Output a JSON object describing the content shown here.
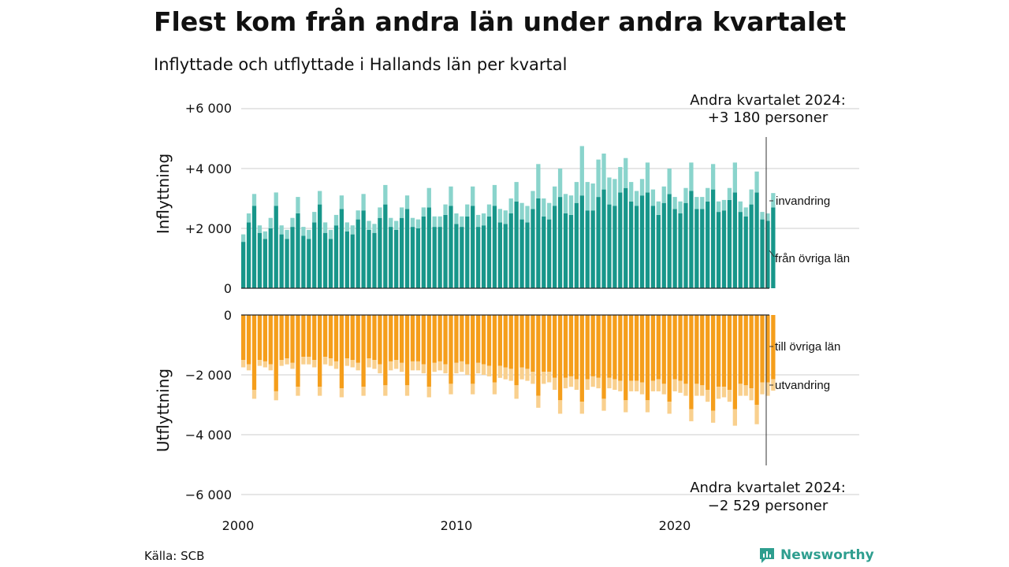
{
  "title": "Flest kom från andra län under andra kvartalet",
  "subtitle": "Inflyttade och utflyttade i Hallands län per kvartal",
  "source": "Källa: SCB",
  "brand": "Newsworthy",
  "colors": {
    "from_other_counties": "#17968a",
    "immigration": "#8ad4cc",
    "to_other_counties": "#f59e1b",
    "emigration": "#f9d08e"
  },
  "chart_data": {
    "type": "bar",
    "layout": "stacked, mirrored (inflow above, outflow below)",
    "x": {
      "start_year": 2000,
      "start_quarter": 1,
      "end_year": 2024,
      "end_quarter": 2,
      "tick_labels": [
        "2000",
        "2010",
        "2020"
      ]
    },
    "inflow": {
      "axis_label": "Inflyttning",
      "tick_labels": [
        "0",
        "+2 000",
        "+4 000",
        "+6 000"
      ],
      "ylim": [
        0,
        6000
      ],
      "series": [
        {
          "name": "från övriga län",
          "values": [
            1550,
            2200,
            2750,
            1850,
            1650,
            2000,
            2750,
            1800,
            1650,
            2050,
            2500,
            1750,
            1650,
            2200,
            2800,
            1850,
            1650,
            2100,
            2650,
            1900,
            1800,
            2300,
            2600,
            1950,
            1850,
            2350,
            2800,
            2050,
            1950,
            2350,
            2650,
            2050,
            2000,
            2400,
            2700,
            2050,
            2050,
            2450,
            2750,
            2150,
            2050,
            2400,
            2750,
            2050,
            2100,
            2400,
            2750,
            2200,
            2150,
            2500,
            2900,
            2300,
            2200,
            2650,
            3000,
            2400,
            2300,
            2750,
            3050,
            2500,
            2450,
            2850,
            3100,
            2600,
            2600,
            3050,
            3300,
            2800,
            2750,
            3200,
            3350,
            2900,
            2750,
            3100,
            3200,
            2750,
            2450,
            2850,
            3150,
            2650,
            2500,
            2850,
            3250,
            2650,
            2650,
            2900,
            3300,
            2550,
            2600,
            2950,
            3200,
            2550,
            2400,
            2800,
            3200,
            2300,
            2250,
            2700
          ],
          "label": "från övriga län"
        },
        {
          "name": "invandring",
          "values": [
            250,
            300,
            400,
            250,
            250,
            350,
            450,
            300,
            300,
            300,
            550,
            300,
            300,
            350,
            450,
            350,
            300,
            350,
            450,
            300,
            300,
            300,
            550,
            300,
            300,
            350,
            650,
            300,
            300,
            350,
            450,
            300,
            300,
            300,
            650,
            350,
            350,
            350,
            650,
            350,
            350,
            400,
            650,
            400,
            400,
            400,
            700,
            450,
            450,
            500,
            650,
            550,
            550,
            600,
            1150,
            600,
            550,
            650,
            950,
            650,
            650,
            700,
            1650,
            950,
            900,
            1250,
            1200,
            900,
            900,
            850,
            1000,
            650,
            500,
            550,
            1000,
            550,
            450,
            550,
            850,
            400,
            400,
            500,
            950,
            400,
            400,
            450,
            850,
            350,
            350,
            400,
            1000,
            350,
            300,
            500,
            700,
            250,
            250,
            480
          ],
          "label": "invandring"
        }
      ],
      "annotation": {
        "line1": "Andra kvartalet 2024:",
        "line2": "+3 180 personer"
      }
    },
    "outflow": {
      "axis_label": "Utflyttning",
      "tick_labels": [
        "0",
        "−2 000",
        "−4 000",
        "−6 000"
      ],
      "ylim": [
        -6000,
        0
      ],
      "series": [
        {
          "name": "till övriga län",
          "values": [
            -1500,
            -1650,
            -2500,
            -1500,
            -1550,
            -1650,
            -2550,
            -1500,
            -1450,
            -1600,
            -2400,
            -1400,
            -1400,
            -1500,
            -2400,
            -1400,
            -1450,
            -1550,
            -2450,
            -1450,
            -1500,
            -1600,
            -2400,
            -1450,
            -1500,
            -1650,
            -2350,
            -1550,
            -1500,
            -1600,
            -2350,
            -1550,
            -1550,
            -1650,
            -2400,
            -1600,
            -1550,
            -1650,
            -2300,
            -1600,
            -1550,
            -1650,
            -2300,
            -1600,
            -1650,
            -1700,
            -2250,
            -1700,
            -1750,
            -1800,
            -2350,
            -1750,
            -1800,
            -1900,
            -2700,
            -1900,
            -1900,
            -2100,
            -2850,
            -2100,
            -2050,
            -2150,
            -2900,
            -2150,
            -2050,
            -2100,
            -2800,
            -2100,
            -2150,
            -2200,
            -2850,
            -2200,
            -2200,
            -2250,
            -2850,
            -2200,
            -2150,
            -2300,
            -2900,
            -2150,
            -2200,
            -2300,
            -3150,
            -2300,
            -2350,
            -2500,
            -3200,
            -2400,
            -2400,
            -2500,
            -3150,
            -2300,
            -2350,
            -2450,
            -3000,
            -2250,
            -2250,
            -2150
          ],
          "label": "till övriga län"
        },
        {
          "name": "utvandring",
          "values": [
            -250,
            -200,
            -300,
            -200,
            -200,
            -200,
            -300,
            -200,
            -200,
            -200,
            -300,
            -250,
            -250,
            -250,
            -300,
            -250,
            -250,
            -250,
            -300,
            -250,
            -250,
            -250,
            -300,
            -300,
            -300,
            -300,
            -350,
            -300,
            -300,
            -300,
            -350,
            -300,
            -300,
            -300,
            -350,
            -300,
            -300,
            -300,
            -350,
            -350,
            -350,
            -350,
            -350,
            -350,
            -350,
            -350,
            -400,
            -400,
            -400,
            -400,
            -450,
            -400,
            -400,
            -400,
            -400,
            -400,
            -350,
            -400,
            -450,
            -350,
            -350,
            -350,
            -400,
            -350,
            -350,
            -350,
            -400,
            -350,
            -350,
            -350,
            -400,
            -350,
            -350,
            -400,
            -400,
            -350,
            -400,
            -350,
            -400,
            -400,
            -400,
            -400,
            -400,
            -400,
            -350,
            -400,
            -400,
            -400,
            -350,
            -400,
            -550,
            -400,
            -350,
            -400,
            -650,
            -400,
            -450,
            -380
          ],
          "label": "utvandring"
        }
      ],
      "annotation": {
        "line1": "Andra kvartalet 2024:",
        "line2": "−2 529 personer"
      }
    }
  }
}
